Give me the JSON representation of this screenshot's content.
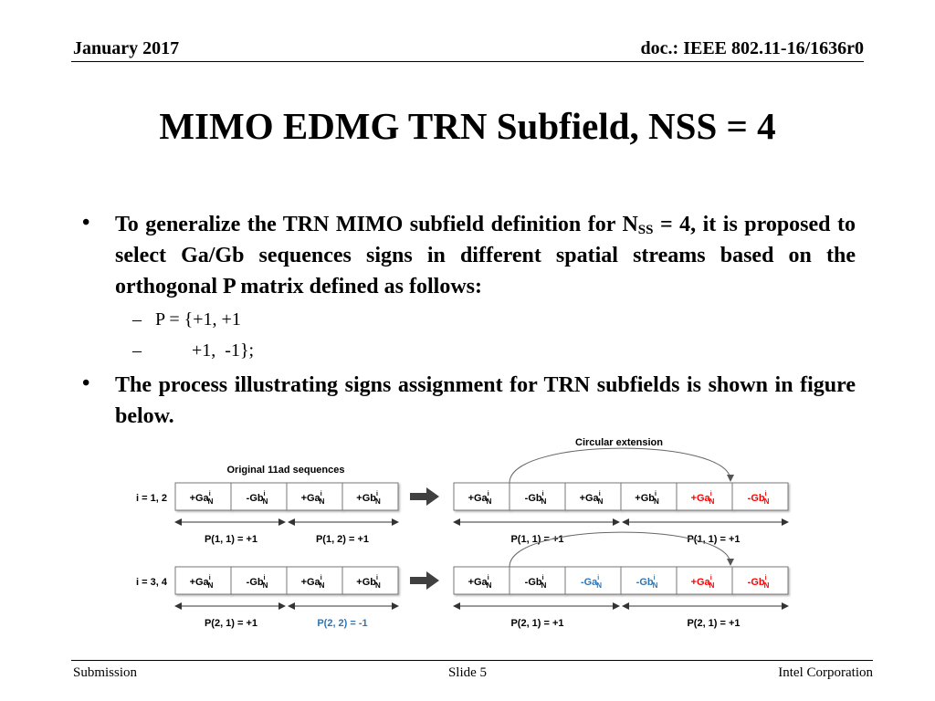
{
  "header": {
    "date": "January 2017",
    "doc": "doc.: IEEE 802.11-16/1636r0"
  },
  "title": "MIMO EDMG TRN Subfield, NSS = 4",
  "bullets": [
    {
      "pre": "To generalize the TRN MIMO subfield definition for N",
      "sub": "SS",
      "post": " = 4, it is proposed to select Ga/Gb sequences signs in different spatial streams based on the orthogonal P matrix defined as follows:"
    },
    {
      "text": "The process illustrating signs assignment for TRN subfields is shown in figure below."
    }
  ],
  "subbullets": [
    {
      "dash": "–",
      "text": "P = {+1, +1"
    },
    {
      "dash": "–",
      "text": "        +1,  -1};"
    }
  ],
  "diagram": {
    "original_label": "Original 11ad sequences",
    "circular_label": "Circular extension",
    "rows": [
      {
        "label": "i = 1, 2",
        "left_cells": [
          {
            "sign": "+",
            "seq": "Ga",
            "color": "#000000"
          },
          {
            "sign": "-",
            "seq": "Gb",
            "color": "#000000"
          },
          {
            "sign": "+",
            "seq": "Ga",
            "color": "#000000"
          },
          {
            "sign": "+",
            "seq": "Gb",
            "color": "#000000"
          }
        ],
        "right_cells": [
          {
            "sign": "+",
            "seq": "Ga",
            "color": "#000000"
          },
          {
            "sign": "-",
            "seq": "Gb",
            "color": "#000000"
          },
          {
            "sign": "+",
            "seq": "Ga",
            "color": "#000000"
          },
          {
            "sign": "+",
            "seq": "Gb",
            "color": "#000000"
          },
          {
            "sign": "+",
            "seq": "Ga",
            "color": "#ff0000"
          },
          {
            "sign": "-",
            "seq": "Gb",
            "color": "#ff0000"
          }
        ],
        "left_p": [
          {
            "text": "P(1, 1) = +1",
            "color": "#000000"
          },
          {
            "text": "P(1, 2) = +1",
            "color": "#000000"
          }
        ],
        "right_p": [
          {
            "text": "P(1, 1) = +1",
            "color": "#000000"
          },
          {
            "text": "P(1, 1) = +1",
            "color": "#000000"
          }
        ]
      },
      {
        "label": "i = 3, 4",
        "left_cells": [
          {
            "sign": "+",
            "seq": "Ga",
            "color": "#000000"
          },
          {
            "sign": "-",
            "seq": "Gb",
            "color": "#000000"
          },
          {
            "sign": "+",
            "seq": "Ga",
            "color": "#000000"
          },
          {
            "sign": "+",
            "seq": "Gb",
            "color": "#000000"
          }
        ],
        "right_cells": [
          {
            "sign": "+",
            "seq": "Ga",
            "color": "#000000"
          },
          {
            "sign": "-",
            "seq": "Gb",
            "color": "#000000"
          },
          {
            "sign": "-",
            "seq": "Ga",
            "color": "#2e75b6"
          },
          {
            "sign": "-",
            "seq": "Gb",
            "color": "#2e75b6"
          },
          {
            "sign": "+",
            "seq": "Ga",
            "color": "#ff0000"
          },
          {
            "sign": "-",
            "seq": "Gb",
            "color": "#ff0000"
          }
        ],
        "left_p": [
          {
            "text": "P(2, 1) = +1",
            "color": "#000000"
          },
          {
            "text": "P(2, 2) = -1",
            "color": "#2e75b6"
          }
        ],
        "right_p": [
          {
            "text": "P(2, 1) = +1",
            "color": "#000000"
          },
          {
            "text": "P(2, 1) = +1",
            "color": "#000000"
          }
        ]
      }
    ],
    "superscript": "i",
    "subscript": "N"
  },
  "footer": {
    "left": "Submission",
    "center": "Slide 5",
    "right": "Intel Corporation"
  }
}
